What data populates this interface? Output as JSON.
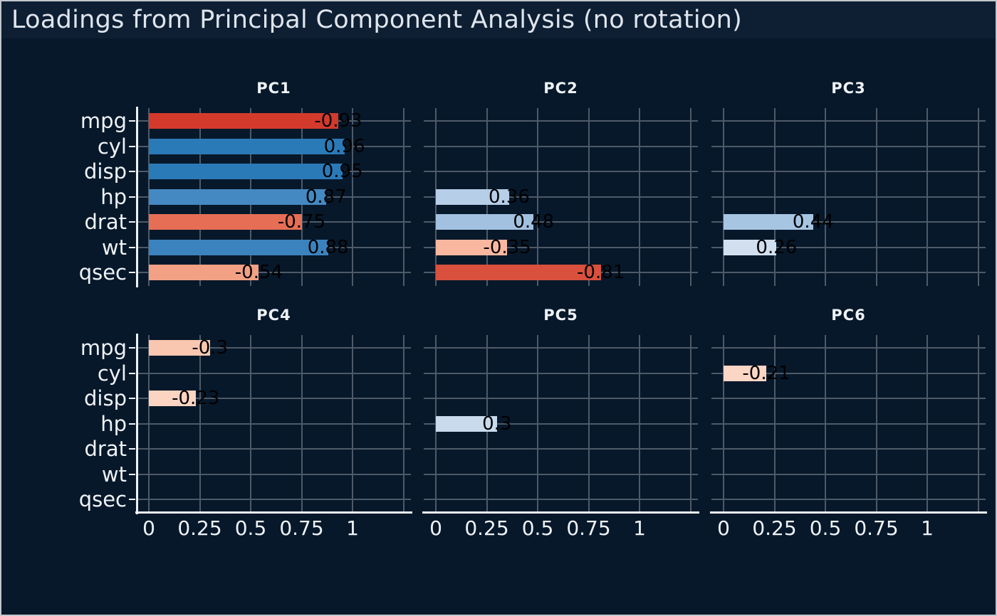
{
  "title": {
    "text": "Loadings from Principal Component Analysis (no rotation)"
  },
  "style": {
    "background": "#07182a",
    "titleband_background": "#0e1f33",
    "border_color": "#c2c7cd",
    "grid_color": "#4e5a68",
    "spine_color": "#eef2f6",
    "axis_text_color": "#eef2f6",
    "title_text_color": "#dfe5ee",
    "value_label_color": "#000000",
    "positive_strong_color": "#2b7ab8",
    "negative_strong_color": "#d33a2c"
  },
  "chart_data": {
    "type": "bar",
    "orientation": "horizontal",
    "suptitle": "Loadings from Principal Component Analysis (no rotation)",
    "categories": [
      "mpg",
      "cyl",
      "disp",
      "hp",
      "drat",
      "wt",
      "qsec"
    ],
    "x_ticks": [
      0,
      0.25,
      0.5,
      0.75,
      1
    ],
    "x_tick_labels": [
      "0",
      "0.25",
      "0.5",
      "0.75",
      "1"
    ],
    "x_grid_ticks": [
      0,
      0.25,
      0.5,
      0.75,
      1,
      1.25
    ],
    "xlim": [
      -0.06,
      1.29
    ],
    "grid": true,
    "layout": "2 rows x 3 columns, shared x and y axes",
    "color_encoding": "RdBu diverging: blue = positive loading, red = negative loading; darker = larger magnitude; bar length = |loading|",
    "panels": [
      {
        "title": "PC1",
        "values": [
          -0.93,
          0.96,
          0.95,
          0.87,
          -0.75,
          0.88,
          -0.54
        ],
        "labels": [
          "-0.93",
          "0.96",
          "0.95",
          "0.87",
          "-0.75",
          "0.88",
          "-0.54"
        ],
        "colors": [
          "#d33a2c",
          "#2b7ab8",
          "#2b7ab8",
          "#4489c2",
          "#e56e55",
          "#3b83bf",
          "#f2a185"
        ]
      },
      {
        "title": "PC2",
        "values": [
          null,
          null,
          null,
          0.36,
          0.48,
          -0.35,
          -0.81
        ],
        "labels": [
          null,
          null,
          null,
          "0.36",
          "0.48",
          "-0.35",
          "-0.81"
        ],
        "colors": [
          null,
          null,
          null,
          "#b7cee8",
          "#a2c1e0",
          "#fab7a0",
          "#d9513c"
        ]
      },
      {
        "title": "PC3",
        "values": [
          null,
          null,
          null,
          null,
          0.44,
          0.26,
          null
        ],
        "labels": [
          null,
          null,
          null,
          null,
          "0.44",
          "0.26",
          null
        ],
        "colors": [
          null,
          null,
          null,
          null,
          "#a6c5e3",
          "#d2dfee",
          null
        ]
      },
      {
        "title": "PC4",
        "values": [
          -0.3,
          null,
          -0.23,
          null,
          null,
          null,
          null
        ],
        "labels": [
          "-0.3",
          null,
          "-0.23",
          null,
          null,
          null,
          null
        ],
        "colors": [
          "#f9c6af",
          null,
          "#fbd4c2",
          null,
          null,
          null,
          null
        ]
      },
      {
        "title": "PC5",
        "values": [
          null,
          null,
          null,
          0.3,
          null,
          null,
          null
        ],
        "labels": [
          null,
          null,
          null,
          "0.3",
          null,
          null,
          null
        ],
        "colors": [
          null,
          null,
          null,
          "#c8daec",
          null,
          null,
          null
        ]
      },
      {
        "title": "PC6",
        "values": [
          null,
          -0.21,
          null,
          null,
          null,
          null,
          null
        ],
        "labels": [
          null,
          "-0.21",
          null,
          null,
          null,
          null,
          null
        ],
        "colors": [
          null,
          "#fcd6c5",
          null,
          null,
          null,
          null,
          null
        ]
      }
    ]
  }
}
